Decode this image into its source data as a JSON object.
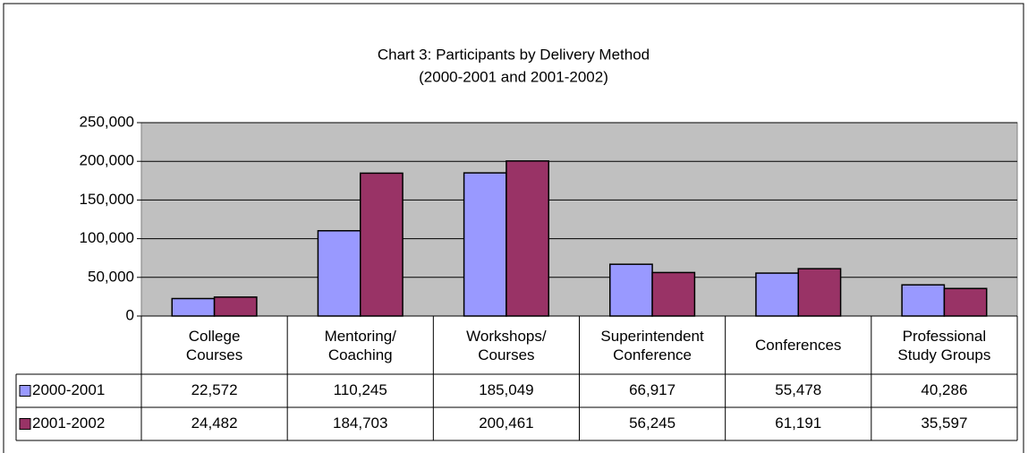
{
  "chart_data": {
    "type": "bar",
    "title": "Chart 3: Participants by Delivery Method",
    "subtitle": "(2000-2001 and 2001-2002)",
    "categories": [
      "College\nCourses",
      "Mentoring/\nCoaching",
      "Workshops/\nCourses",
      "Superintendent\nConference",
      "Conferences",
      "Professional\nStudy Groups"
    ],
    "series": [
      {
        "name": "2000-2001",
        "color": "#9999ff",
        "values": [
          22572,
          110245,
          185049,
          66917,
          55478,
          40286
        ],
        "value_labels": [
          "22,572",
          "110,245",
          "185,049",
          "66,917",
          "55,478",
          "40,286"
        ]
      },
      {
        "name": "2001-2002",
        "color": "#993366",
        "values": [
          24482,
          184703,
          200461,
          56245,
          61191,
          35597
        ],
        "value_labels": [
          "24,482",
          "184,703",
          "200,461",
          "56,245",
          "61,191",
          "35,597"
        ]
      }
    ],
    "ylim": [
      0,
      250000
    ],
    "yticks": [
      0,
      {
        "value": 50000,
        "label": "50,000"
      },
      {
        "value": 100000,
        "label": "100,000"
      },
      {
        "value": 150000,
        "label": "150,000"
      },
      {
        "value": 200000,
        "label": "200,000"
      },
      {
        "value": 250000,
        "label": "250,000"
      }
    ],
    "grid": true,
    "plot_background": "#c0c0c0"
  }
}
